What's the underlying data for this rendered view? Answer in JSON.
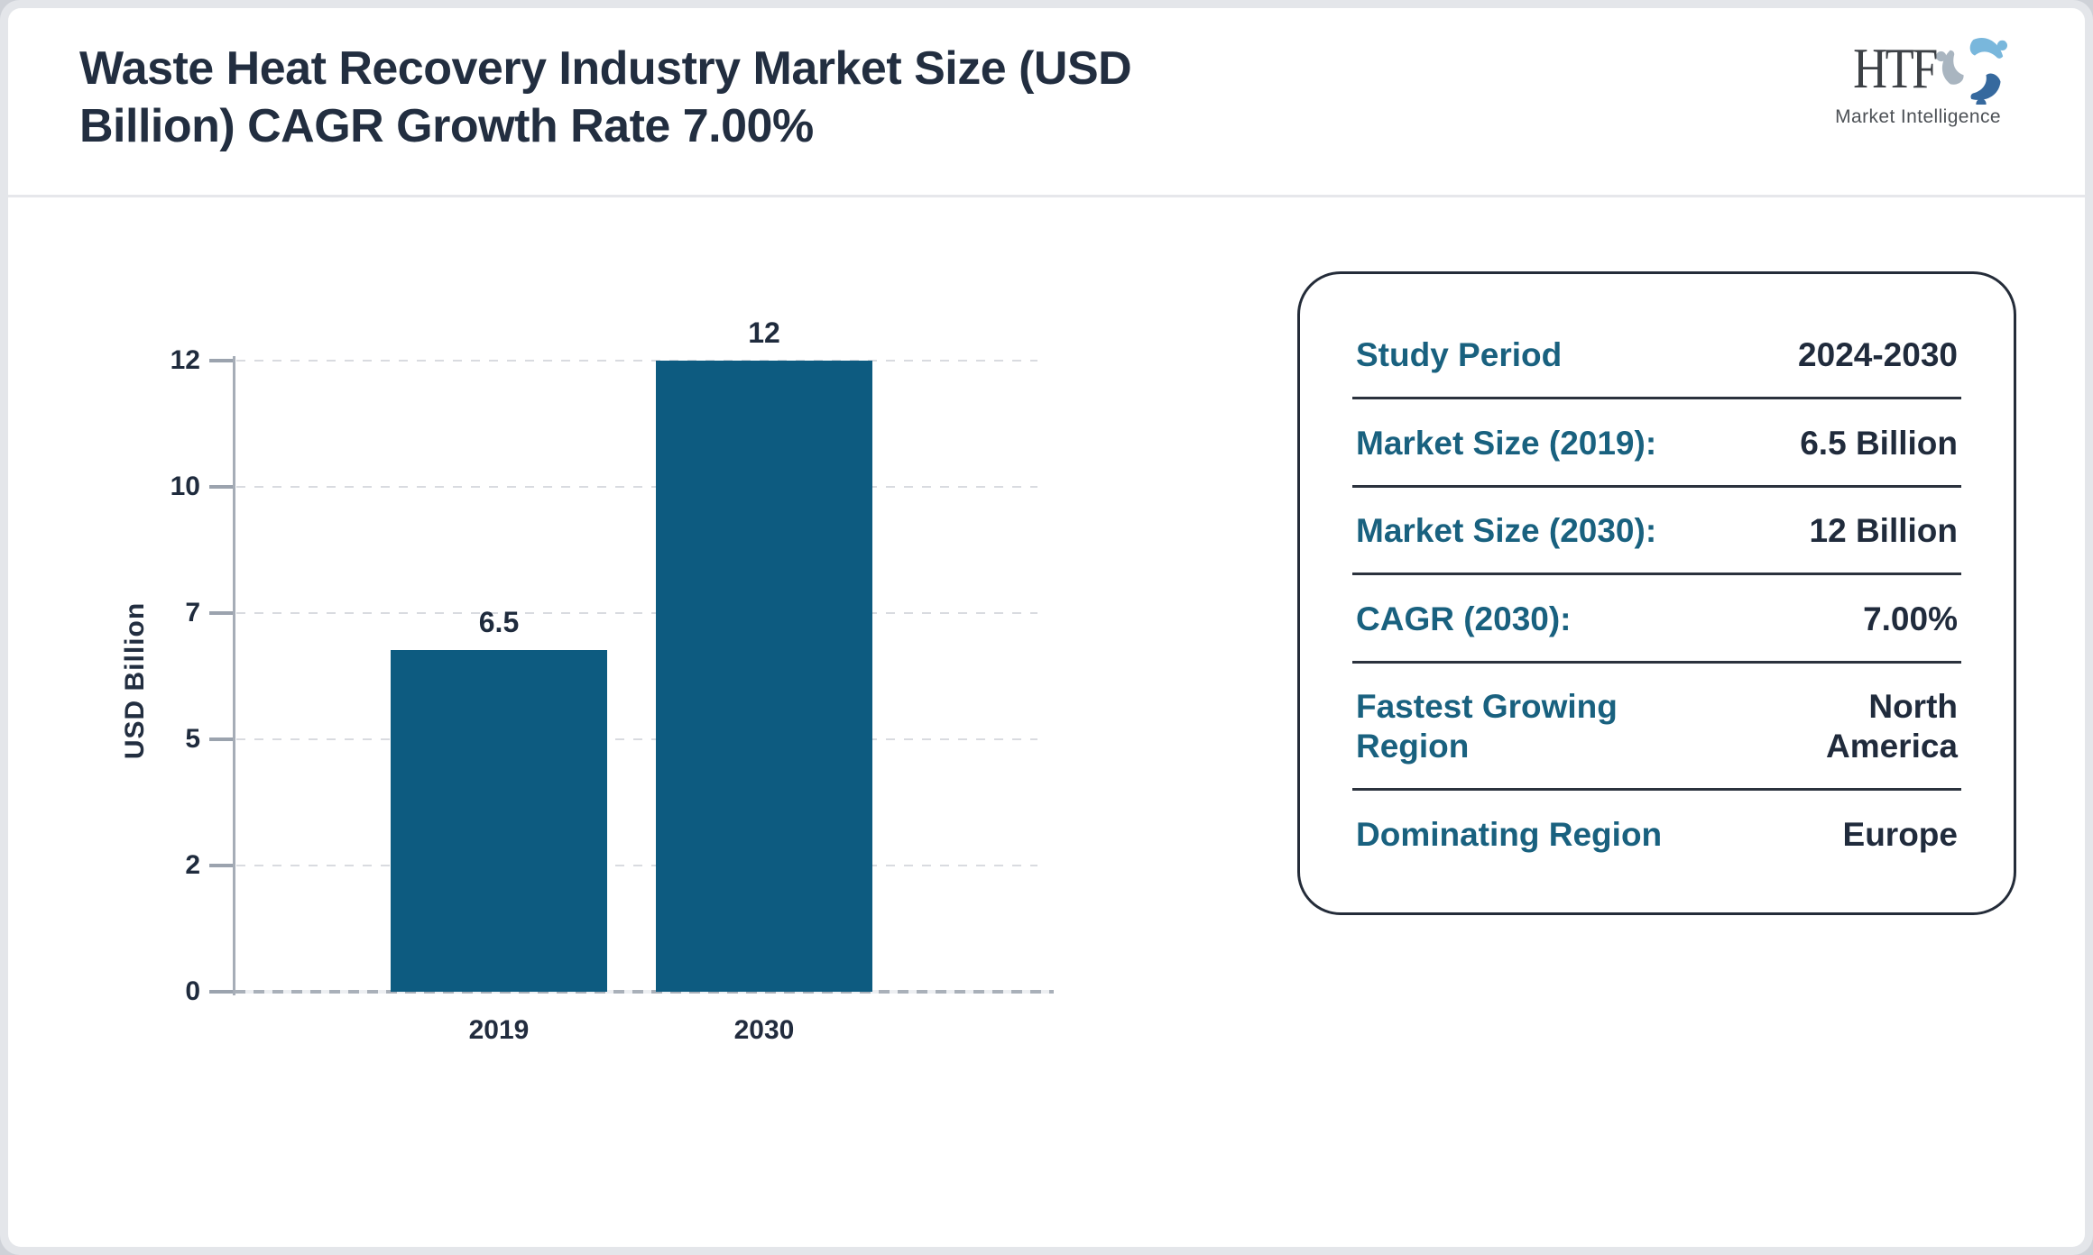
{
  "header": {
    "title_lines": [
      "Waste Heat Recovery Industry Market Size (USD",
      "Billion) CAGR Growth Rate 7.00%"
    ],
    "logo": {
      "acronym": "HTF",
      "tagline": "Market Intelligence"
    }
  },
  "chart_data": {
    "type": "bar",
    "title": "Waste Heat Recovery Industry Market Size (USD Billion) CAGR Growth Rate 7.00%",
    "categories": [
      "2019",
      "2030"
    ],
    "values": [
      6.5,
      12
    ],
    "labels": [
      "6.5",
      "12"
    ],
    "xlabel": "",
    "ylabel": "USD Billion",
    "yticks": [
      0,
      2,
      5,
      7,
      10,
      12
    ],
    "ylim": [
      0,
      12
    ],
    "grid": "horizontal-dashed",
    "legend": "none",
    "bar_color": "#0d5b80"
  },
  "info_panel": {
    "rows": [
      {
        "label": "Study Period",
        "value": "2024-2030"
      },
      {
        "label": "Market Size (2019):",
        "value": "6.5 Billion"
      },
      {
        "label": "Market Size (2030):",
        "value": "12 Billion"
      },
      {
        "label": "CAGR (2030):",
        "value": "7.00%"
      },
      {
        "label": "Fastest Growing Region",
        "value": "North America"
      },
      {
        "label": "Dominating Region",
        "value": "Europe"
      }
    ]
  },
  "colors": {
    "bar": "#0d5b80",
    "label_teal": "#19617f",
    "text_dark": "#202b3c",
    "axis_gray": "#a6adb7"
  }
}
